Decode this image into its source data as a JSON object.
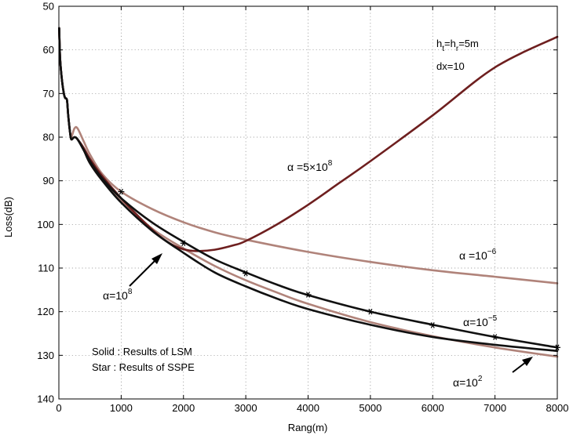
{
  "chart_data": {
    "type": "line",
    "title": "",
    "xlabel": "Rang(m)",
    "ylabel": "Loss(dB)",
    "xlim": [
      0,
      8000
    ],
    "ylim": [
      140,
      50
    ],
    "y_axis_inverted": true,
    "grid": true,
    "x_ticks": [
      0,
      1000,
      2000,
      3000,
      4000,
      5000,
      6000,
      7000,
      8000
    ],
    "y_ticks": [
      50,
      60,
      70,
      80,
      90,
      100,
      110,
      120,
      130,
      140
    ],
    "colors": {
      "alpha_5e8": "#6e1f1f",
      "alpha_1e-6": "#b0837a",
      "alpha_1e-5": "#111111",
      "alpha_1e8": "#111111",
      "alpha_1e2": "#b0837a"
    },
    "series": [
      {
        "name": "α=5×10^8",
        "x": [
          5,
          20,
          50,
          80,
          100,
          130,
          150,
          180,
          200,
          250,
          300,
          400,
          500,
          700,
          1000,
          1300,
          1600,
          1800,
          2000,
          2200,
          2500,
          2800,
          3000,
          3500,
          4000,
          4500,
          5000,
          6000,
          7000,
          8000
        ],
        "y": [
          55,
          62,
          67,
          70,
          71,
          71.5,
          75,
          79,
          80.5,
          80,
          80.5,
          82.5,
          85,
          89,
          94,
          98.5,
          102.5,
          104.5,
          105.7,
          106.1,
          105.8,
          104.8,
          103.8,
          100,
          95.5,
          90.5,
          85.5,
          75,
          64,
          57
        ]
      },
      {
        "name": "α=10^-6",
        "x": [
          5,
          20,
          50,
          80,
          100,
          130,
          150,
          180,
          200,
          250,
          300,
          400,
          500,
          700,
          1000,
          1500,
          2000,
          2500,
          3000,
          4000,
          5000,
          6000,
          7000,
          8000
        ],
        "y": [
          55,
          62,
          67,
          70,
          71,
          71.5,
          75,
          79,
          80,
          78,
          78,
          81,
          84,
          88.5,
          92.5,
          96.5,
          99.5,
          101.8,
          103.5,
          106.3,
          108.6,
          110.5,
          112,
          113.5
        ]
      },
      {
        "name": "α=10^-5",
        "x": [
          5,
          20,
          50,
          80,
          100,
          130,
          150,
          180,
          200,
          250,
          300,
          400,
          500,
          700,
          1000,
          1500,
          2000,
          2500,
          3000,
          3500,
          4000,
          5000,
          6000,
          7000,
          8000
        ],
        "y": [
          55,
          62,
          67,
          70,
          71,
          71.5,
          75,
          79,
          80.5,
          80,
          80.5,
          83,
          85.5,
          89.5,
          94,
          99.6,
          104,
          108,
          111,
          113.8,
          116.2,
          120,
          123,
          125.8,
          128.2
        ]
      },
      {
        "name": "α=10^8",
        "x": [
          5,
          20,
          50,
          80,
          100,
          130,
          150,
          180,
          200,
          250,
          300,
          400,
          500,
          700,
          1000,
          1500,
          2000,
          2500,
          3000,
          3500,
          4000,
          5000,
          6000,
          7000,
          8000
        ],
        "y": [
          55,
          62,
          67,
          70,
          71,
          71.5,
          75,
          79,
          80.5,
          80,
          80.5,
          83,
          86,
          90,
          95,
          101.5,
          106.5,
          111,
          114.2,
          117,
          119.4,
          123,
          125.8,
          127.6,
          129
        ]
      },
      {
        "name": "α=10^2",
        "x": [
          5,
          20,
          50,
          80,
          100,
          130,
          150,
          180,
          200,
          250,
          300,
          400,
          500,
          700,
          1000,
          1500,
          2000,
          2500,
          3000,
          3500,
          4000,
          5000,
          6000,
          7000,
          8000
        ],
        "y": [
          55,
          62,
          67,
          70,
          71,
          71.5,
          75,
          79,
          80.5,
          80,
          80.5,
          83,
          86,
          90,
          94.5,
          101,
          105.5,
          109.5,
          112.8,
          115.6,
          118.2,
          122.4,
          125.6,
          128.2,
          130.3
        ]
      }
    ],
    "sspe_stars": {
      "x": [
        1000,
        2000,
        3000,
        4000,
        5000,
        6000,
        7000,
        8000
      ],
      "y": [
        92.5,
        104.3,
        111.2,
        116.1,
        120,
        123.1,
        125.8,
        128.2
      ]
    },
    "annotations": {
      "ht_hr": "h_t=h_r=5m",
      "ht_main": "h",
      "ht_sub": "t",
      "hr_main": "=h",
      "hr_sub": "r",
      "ht_tail": "=5m",
      "dx": "dx=10",
      "a5e8_base": "α =5×10",
      "a5e8_exp": "8",
      "a1e-6_base": "α =10",
      "a1e-6_exp": "−6",
      "a1e-5_base": "α=10",
      "a1e-5_exp": "−5",
      "a1e8_base": "α=10",
      "a1e8_exp": "8",
      "a1e2_base": "α=10",
      "a1e2_exp": "2",
      "solid_note": "Solid : Results of LSM",
      "star_note": "Star : Results of SSPE"
    }
  }
}
